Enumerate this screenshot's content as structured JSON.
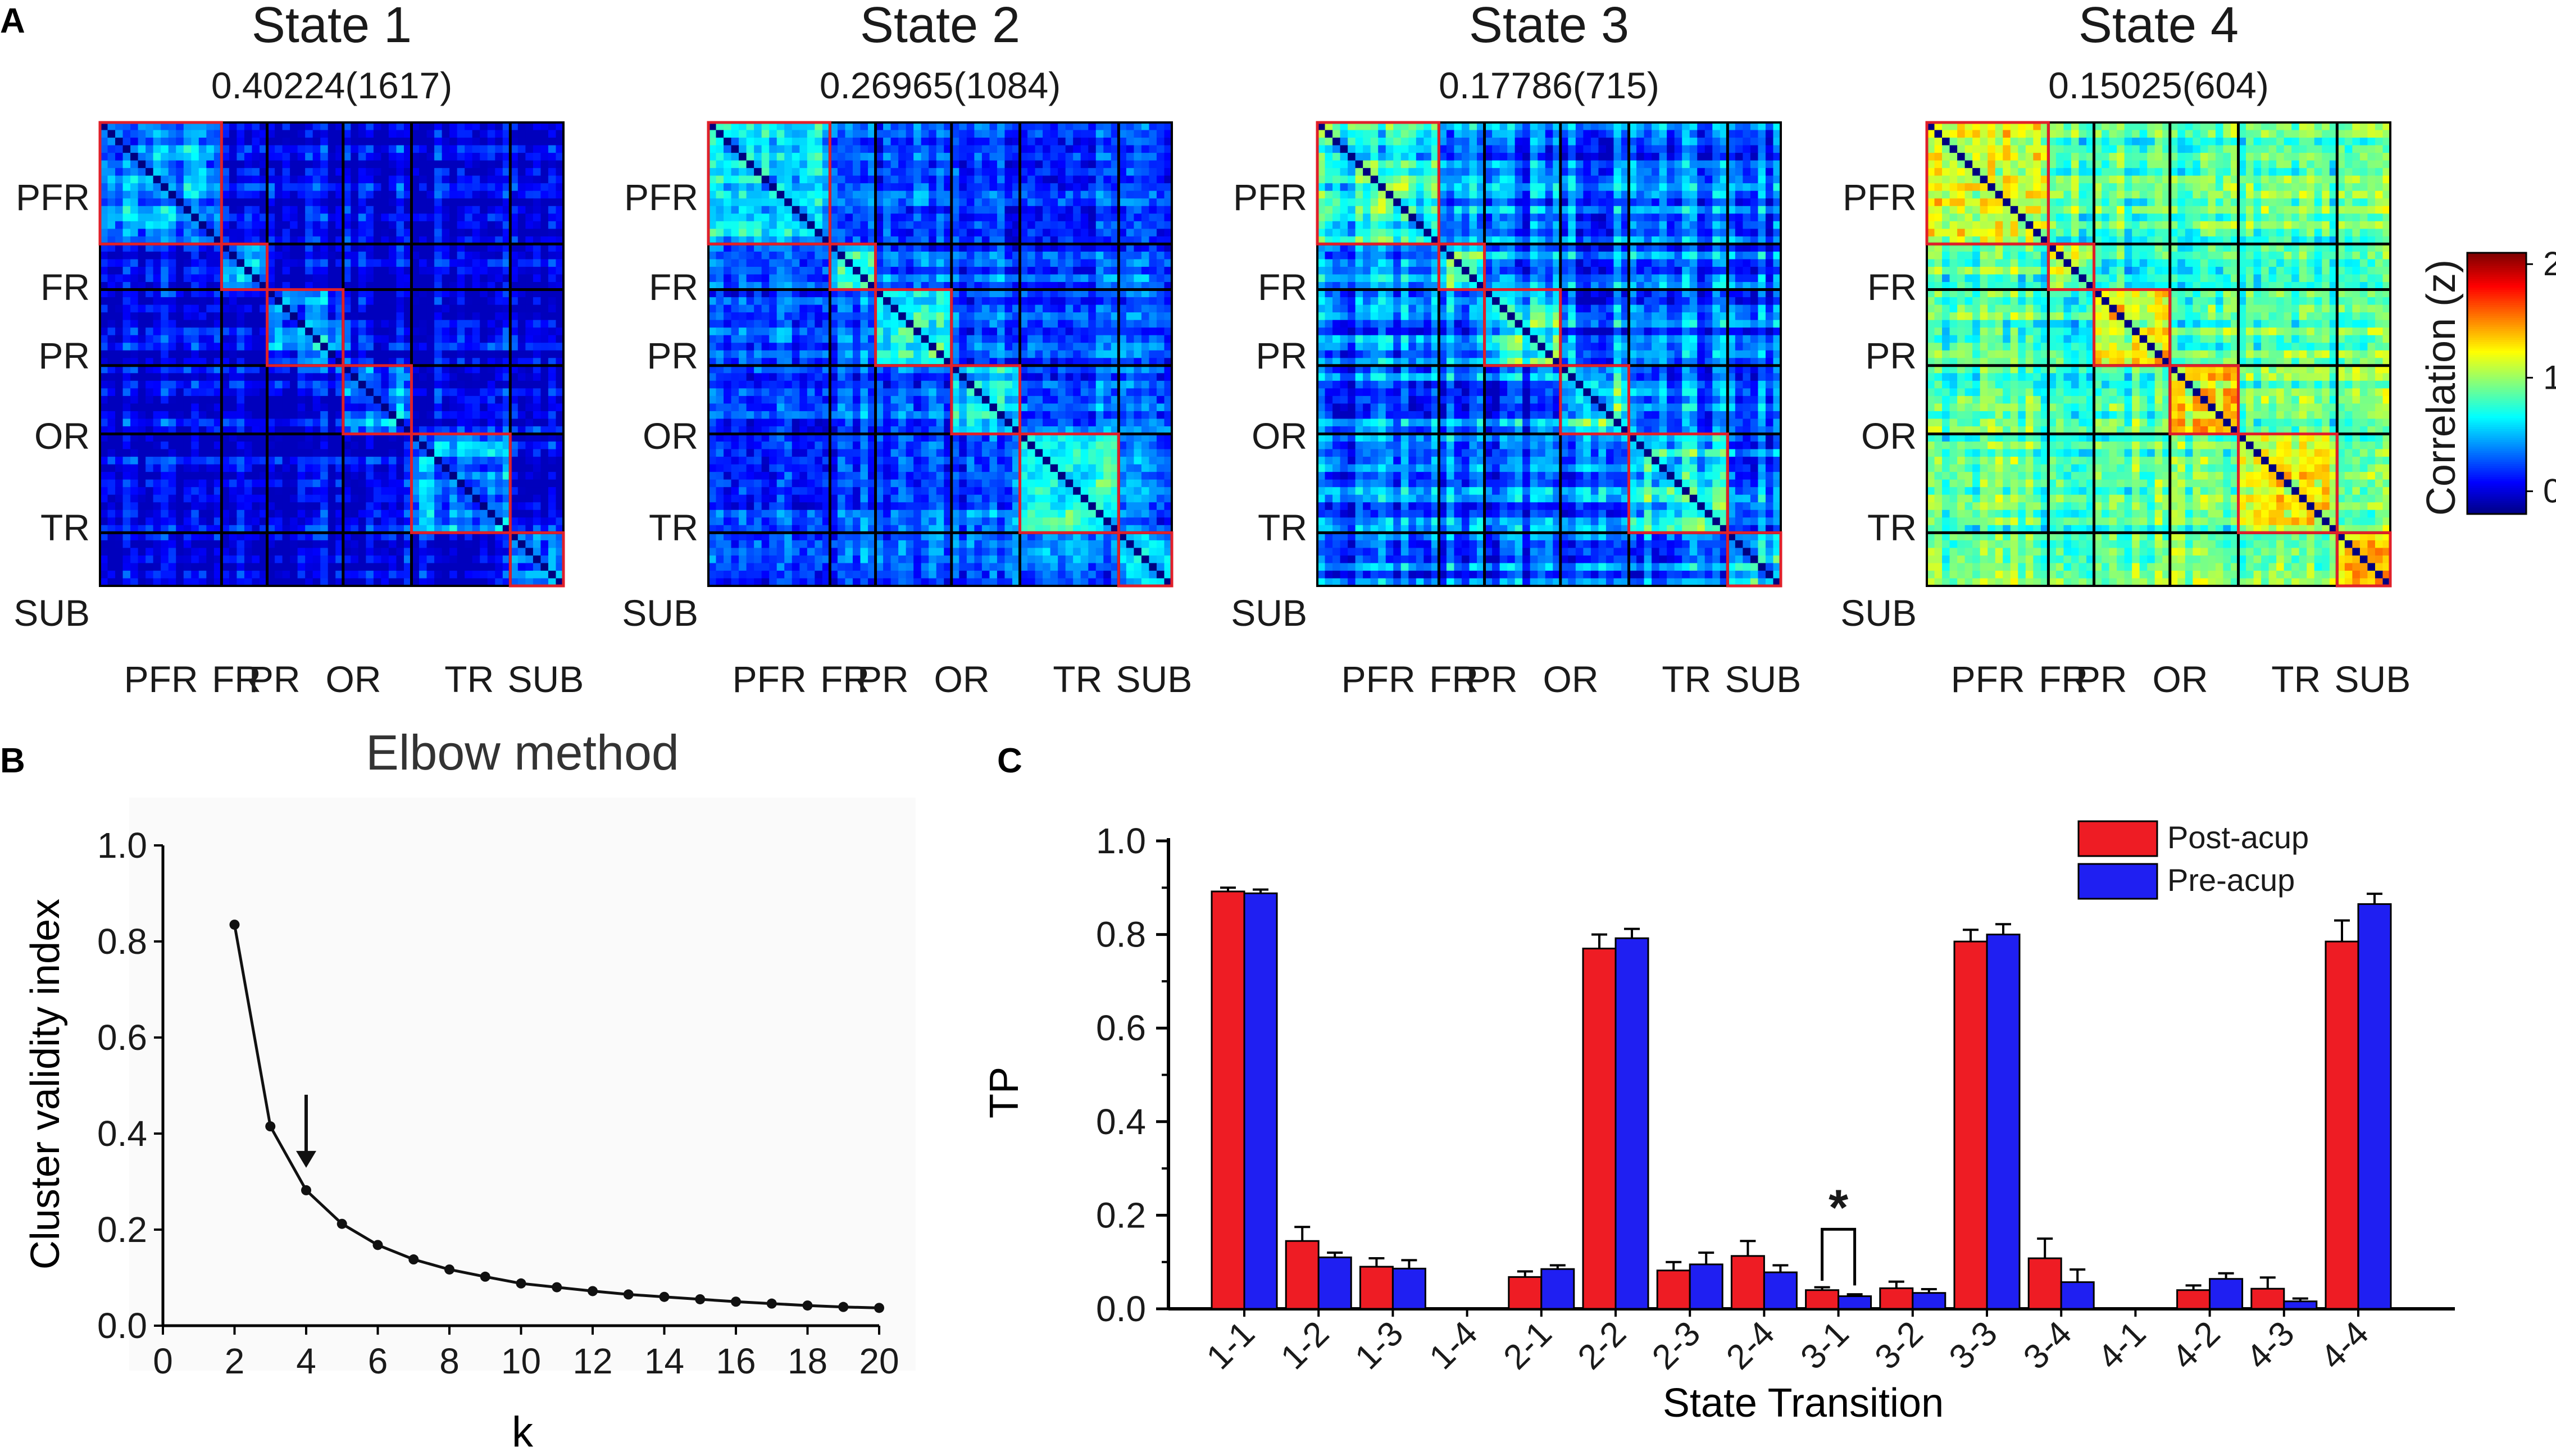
{
  "figure": {
    "panel_labels": [
      "A",
      "B",
      "C"
    ]
  },
  "panel_a": {
    "states": [
      {
        "title": "State 1",
        "subtitle": "0.40224(1617)",
        "base": 0.18,
        "strength": 0.65
      },
      {
        "title": "State 2",
        "subtitle": "0.26965(1084)",
        "base": 0.42,
        "strength": 0.6
      },
      {
        "title": "State 3",
        "subtitle": "0.17786(715)",
        "base": 0.45,
        "strength": 0.85
      },
      {
        "title": "State 4",
        "subtitle": "0.15025(604)",
        "base": 0.95,
        "strength": 0.65
      }
    ],
    "regions": [
      "PFR",
      "FR",
      "PR",
      "OR",
      "TR",
      "SUB"
    ],
    "region_sizes": [
      16,
      6,
      10,
      9,
      13,
      7
    ],
    "colorbar": {
      "label": "Correlation (z)",
      "ticks": [
        "2",
        "1",
        "0"
      ],
      "tick_values": [
        2,
        1,
        0
      ],
      "min": -0.2,
      "max": 2.1
    },
    "colors": {
      "module_box": "#e0202a",
      "grid_line": "#000000"
    }
  },
  "chart_data": [
    {
      "type": "line",
      "title": "Elbow method",
      "xlabel": "k",
      "ylabel": "Cluster validity index",
      "x": [
        2,
        3,
        4,
        5,
        6,
        7,
        8,
        9,
        10,
        11,
        12,
        13,
        14,
        15,
        16,
        17,
        18,
        19,
        20
      ],
      "y": [
        0.835,
        0.415,
        0.282,
        0.212,
        0.168,
        0.138,
        0.117,
        0.102,
        0.088,
        0.08,
        0.072,
        0.065,
        0.06,
        0.055,
        0.05,
        0.046,
        0.042,
        0.039,
        0.037
      ],
      "xlim": [
        0,
        20
      ],
      "ylim": [
        0.0,
        1.0
      ],
      "xticks": [
        0,
        2,
        4,
        6,
        8,
        10,
        12,
        14,
        16,
        18,
        20
      ],
      "yticks": [
        "0.0",
        "0.2",
        "0.4",
        "0.6",
        "0.8",
        "1.0"
      ],
      "annotation": {
        "type": "arrow",
        "x": 4,
        "note": "optimal k"
      },
      "grid": false
    },
    {
      "type": "bar",
      "xlabel": "State Transition",
      "ylabel": "TP",
      "categories": [
        "1-1",
        "1-2",
        "1-3",
        "1-4",
        "2-1",
        "2-2",
        "2-3",
        "2-4",
        "3-1",
        "3-2",
        "3-3",
        "3-4",
        "4-1",
        "4-2",
        "4-3",
        "4-4"
      ],
      "series": [
        {
          "name": "Post-acup",
          "color": "#ee1c24",
          "values": [
            0.892,
            0.145,
            0.09,
            0.0,
            0.068,
            0.77,
            0.082,
            0.113,
            0.04,
            0.044,
            0.785,
            0.108,
            0.0,
            0.04,
            0.043,
            0.785
          ],
          "errors": [
            0.008,
            0.03,
            0.018,
            0.0,
            0.012,
            0.03,
            0.018,
            0.032,
            0.006,
            0.014,
            0.025,
            0.042,
            0.0,
            0.01,
            0.024,
            0.045
          ]
        },
        {
          "name": "Pre-acup",
          "color": "#1f1ff2",
          "values": [
            0.888,
            0.11,
            0.086,
            0.0,
            0.085,
            0.792,
            0.095,
            0.078,
            0.027,
            0.034,
            0.8,
            0.057,
            0.0,
            0.064,
            0.016,
            0.865
          ],
          "errors": [
            0.008,
            0.01,
            0.018,
            0.0,
            0.008,
            0.02,
            0.025,
            0.015,
            0.004,
            0.008,
            0.022,
            0.027,
            0.0,
            0.012,
            0.006,
            0.022
          ]
        }
      ],
      "ylim": [
        0.0,
        1.0
      ],
      "yticks": [
        "0.0",
        "0.2",
        "0.4",
        "0.6",
        "0.8",
        "1.0"
      ],
      "significance": {
        "label": "*",
        "category": "3-1"
      },
      "legend": "top-right",
      "grid": false
    }
  ]
}
